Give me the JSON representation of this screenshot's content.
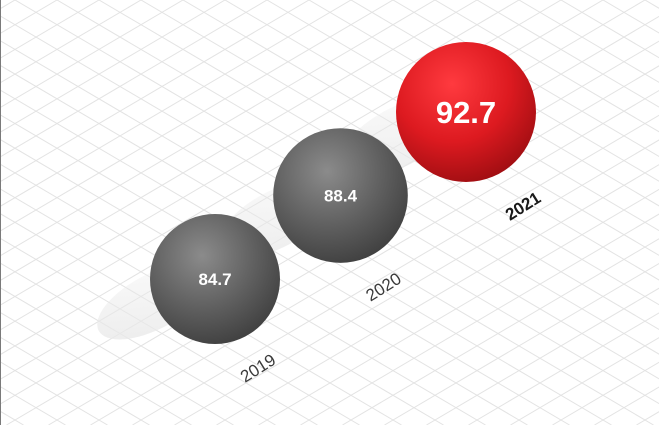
{
  "chart_data": {
    "type": "scatter",
    "title": "",
    "xlabel": "",
    "ylabel": "",
    "categories": [
      "2019",
      "2020",
      "2021"
    ],
    "values": [
      84.7,
      88.4,
      92.7
    ],
    "labels": [
      "84.7",
      "88.4",
      "92.7"
    ],
    "highlight_index": 2,
    "grid": true
  },
  "colors": {
    "highlight": "#d9151c",
    "default": "#595959",
    "grid": "#e3e3e3",
    "shadow": "#e6e6e6"
  }
}
